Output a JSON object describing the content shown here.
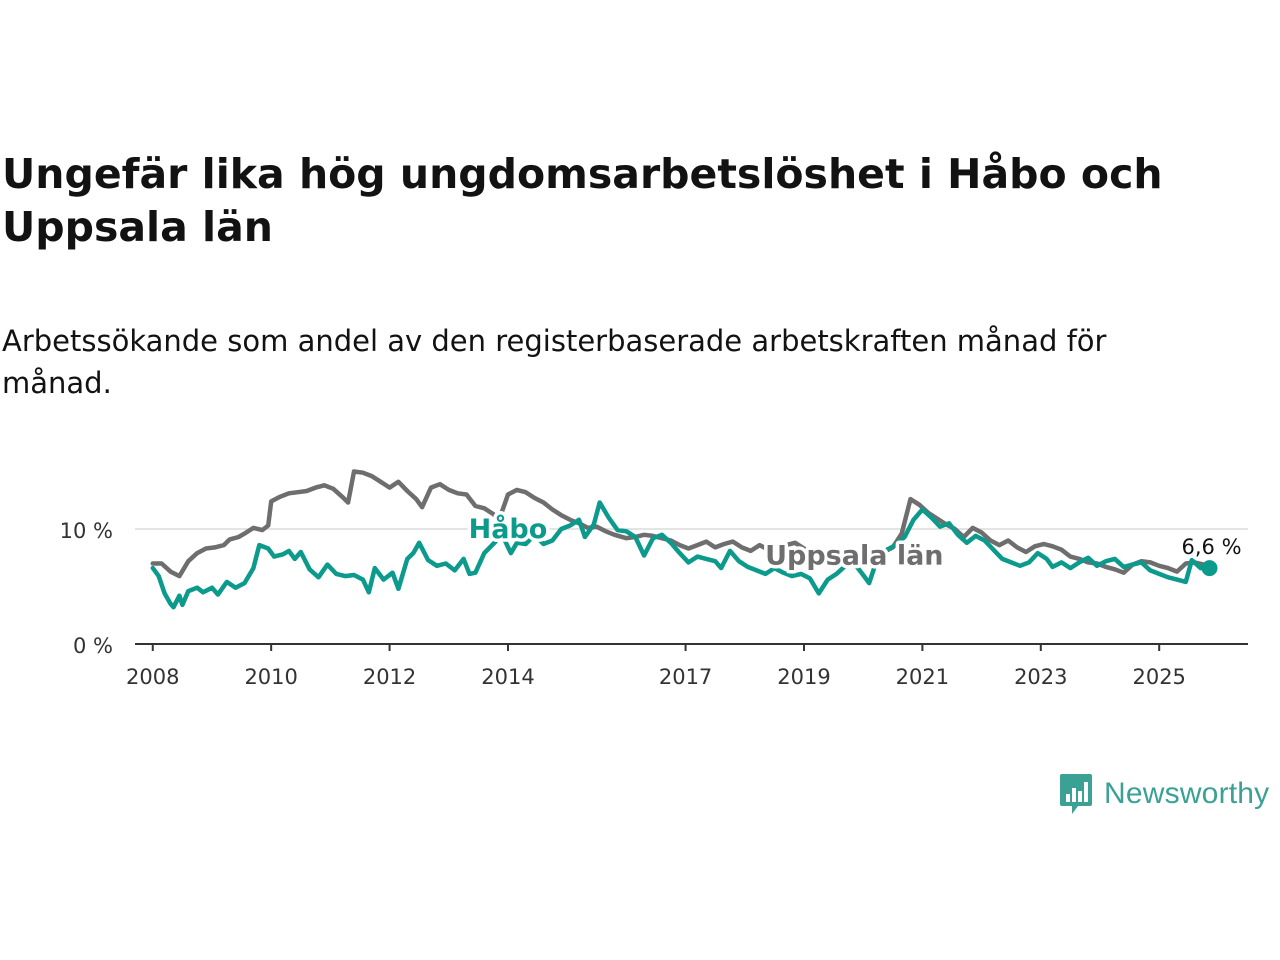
{
  "title": "Ungefär lika hög ungdomsarbetslöshet i Håbo och Uppsala län",
  "subtitle": "Arbetssökande som andel av den registerbaserade arbetskraften månad för månad.",
  "brand": {
    "name": "Newsworthy",
    "color": "#3aa194",
    "icon": "bar-chart-speech-bubble-icon"
  },
  "chart_data": {
    "type": "line",
    "title": "Ungefär lika hög ungdomsarbetslöshet i Håbo och Uppsala län",
    "xlabel": "",
    "ylabel": "",
    "x_range": [
      2007.7,
      2026.5
    ],
    "ylim": [
      0,
      16
    ],
    "x_ticks": [
      2008,
      2010,
      2012,
      2014,
      2017,
      2019,
      2021,
      2023,
      2025
    ],
    "x_tick_labels": [
      "2008",
      "2010",
      "2012",
      "2014",
      "2017",
      "2019",
      "2021",
      "2023",
      "2025"
    ],
    "y_ticks": [
      0,
      10
    ],
    "y_tick_labels": [
      "0 %",
      "10 %"
    ],
    "grid": "horizontal",
    "last_value_label": "6,6 %",
    "series": [
      {
        "name": "Uppsala län",
        "label": "Uppsala län",
        "color": "#6f6e6f",
        "points": [
          [
            2008.0,
            7.0
          ],
          [
            2008.15,
            7.0
          ],
          [
            2008.3,
            6.3
          ],
          [
            2008.45,
            5.9
          ],
          [
            2008.6,
            7.2
          ],
          [
            2008.75,
            7.9
          ],
          [
            2008.9,
            8.3
          ],
          [
            2009.05,
            8.4
          ],
          [
            2009.2,
            8.6
          ],
          [
            2009.3,
            9.1
          ],
          [
            2009.45,
            9.3
          ],
          [
            2009.55,
            9.6
          ],
          [
            2009.7,
            10.1
          ],
          [
            2009.85,
            9.9
          ],
          [
            2009.95,
            10.3
          ],
          [
            2010.0,
            12.4
          ],
          [
            2010.15,
            12.8
          ],
          [
            2010.3,
            13.1
          ],
          [
            2010.45,
            13.2
          ],
          [
            2010.6,
            13.3
          ],
          [
            2010.75,
            13.6
          ],
          [
            2010.9,
            13.8
          ],
          [
            2011.05,
            13.5
          ],
          [
            2011.2,
            12.8
          ],
          [
            2011.3,
            12.3
          ],
          [
            2011.4,
            15.0
          ],
          [
            2011.55,
            14.9
          ],
          [
            2011.7,
            14.6
          ],
          [
            2011.85,
            14.1
          ],
          [
            2012.0,
            13.6
          ],
          [
            2012.15,
            14.1
          ],
          [
            2012.3,
            13.3
          ],
          [
            2012.45,
            12.6
          ],
          [
            2012.55,
            11.9
          ],
          [
            2012.7,
            13.6
          ],
          [
            2012.85,
            13.9
          ],
          [
            2013.0,
            13.4
          ],
          [
            2013.15,
            13.1
          ],
          [
            2013.3,
            13.0
          ],
          [
            2013.45,
            12.0
          ],
          [
            2013.6,
            11.8
          ],
          [
            2013.75,
            11.3
          ],
          [
            2013.85,
            10.8
          ],
          [
            2014.0,
            13.0
          ],
          [
            2014.15,
            13.4
          ],
          [
            2014.3,
            13.2
          ],
          [
            2014.45,
            12.7
          ],
          [
            2014.6,
            12.3
          ],
          [
            2014.75,
            11.7
          ],
          [
            2014.9,
            11.2
          ],
          [
            2015.05,
            10.8
          ],
          [
            2015.2,
            10.5
          ],
          [
            2015.35,
            10.1
          ],
          [
            2015.5,
            10.2
          ],
          [
            2015.65,
            9.8
          ],
          [
            2015.8,
            9.5
          ],
          [
            2016.0,
            9.2
          ],
          [
            2016.15,
            9.3
          ],
          [
            2016.3,
            9.5
          ],
          [
            2016.45,
            9.4
          ],
          [
            2016.6,
            9.2
          ],
          [
            2016.75,
            9.0
          ],
          [
            2016.9,
            8.6
          ],
          [
            2017.05,
            8.3
          ],
          [
            2017.2,
            8.6
          ],
          [
            2017.35,
            8.9
          ],
          [
            2017.5,
            8.4
          ],
          [
            2017.65,
            8.7
          ],
          [
            2017.8,
            8.9
          ],
          [
            2017.95,
            8.4
          ],
          [
            2018.1,
            8.1
          ],
          [
            2018.25,
            8.6
          ],
          [
            2018.4,
            8.2
          ],
          [
            2018.55,
            8.0
          ],
          [
            2018.7,
            8.6
          ],
          [
            2018.85,
            8.8
          ],
          [
            2019.0,
            8.3
          ],
          [
            2019.15,
            7.8
          ],
          [
            2019.3,
            7.5
          ],
          [
            2019.45,
            7.4
          ],
          [
            2019.6,
            7.3
          ],
          [
            2019.75,
            7.6
          ],
          [
            2019.9,
            7.8
          ],
          [
            2020.05,
            7.9
          ],
          [
            2020.2,
            7.7
          ],
          [
            2020.35,
            8.0
          ],
          [
            2020.5,
            8.4
          ],
          [
            2020.65,
            9.6
          ],
          [
            2020.8,
            12.6
          ],
          [
            2020.95,
            12.1
          ],
          [
            2021.1,
            11.4
          ],
          [
            2021.25,
            10.9
          ],
          [
            2021.4,
            10.4
          ],
          [
            2021.55,
            10.0
          ],
          [
            2021.7,
            9.3
          ],
          [
            2021.85,
            10.1
          ],
          [
            2022.0,
            9.7
          ],
          [
            2022.15,
            9.0
          ],
          [
            2022.3,
            8.6
          ],
          [
            2022.45,
            9.0
          ],
          [
            2022.6,
            8.4
          ],
          [
            2022.75,
            8.0
          ],
          [
            2022.9,
            8.5
          ],
          [
            2023.05,
            8.7
          ],
          [
            2023.2,
            8.5
          ],
          [
            2023.35,
            8.2
          ],
          [
            2023.5,
            7.6
          ],
          [
            2023.65,
            7.4
          ],
          [
            2023.8,
            7.1
          ],
          [
            2023.95,
            7.0
          ],
          [
            2024.1,
            6.7
          ],
          [
            2024.25,
            6.5
          ],
          [
            2024.4,
            6.2
          ],
          [
            2024.55,
            6.9
          ],
          [
            2024.7,
            7.2
          ],
          [
            2024.85,
            7.1
          ],
          [
            2025.0,
            6.8
          ],
          [
            2025.15,
            6.6
          ],
          [
            2025.3,
            6.3
          ],
          [
            2025.45,
            7.0
          ],
          [
            2025.6,
            7.1
          ],
          [
            2025.75,
            6.9
          ],
          [
            2025.85,
            6.8
          ]
        ]
      },
      {
        "name": "Håbo",
        "label": "Håbo",
        "color": "#0b9a8c",
        "points": [
          [
            2008.0,
            6.6
          ],
          [
            2008.1,
            5.9
          ],
          [
            2008.2,
            4.4
          ],
          [
            2008.3,
            3.5
          ],
          [
            2008.35,
            3.2
          ],
          [
            2008.45,
            4.2
          ],
          [
            2008.5,
            3.4
          ],
          [
            2008.6,
            4.6
          ],
          [
            2008.75,
            4.9
          ],
          [
            2008.85,
            4.5
          ],
          [
            2009.0,
            4.9
          ],
          [
            2009.1,
            4.3
          ],
          [
            2009.25,
            5.4
          ],
          [
            2009.4,
            4.9
          ],
          [
            2009.55,
            5.3
          ],
          [
            2009.7,
            6.6
          ],
          [
            2009.8,
            8.6
          ],
          [
            2009.95,
            8.3
          ],
          [
            2010.05,
            7.6
          ],
          [
            2010.2,
            7.8
          ],
          [
            2010.3,
            8.1
          ],
          [
            2010.4,
            7.4
          ],
          [
            2010.5,
            8.0
          ],
          [
            2010.65,
            6.5
          ],
          [
            2010.8,
            5.8
          ],
          [
            2010.95,
            6.9
          ],
          [
            2011.1,
            6.1
          ],
          [
            2011.25,
            5.9
          ],
          [
            2011.4,
            6.0
          ],
          [
            2011.55,
            5.6
          ],
          [
            2011.65,
            4.5
          ],
          [
            2011.75,
            6.6
          ],
          [
            2011.9,
            5.6
          ],
          [
            2012.05,
            6.2
          ],
          [
            2012.15,
            4.8
          ],
          [
            2012.3,
            7.4
          ],
          [
            2012.4,
            7.9
          ],
          [
            2012.5,
            8.8
          ],
          [
            2012.65,
            7.3
          ],
          [
            2012.8,
            6.8
          ],
          [
            2012.95,
            7.0
          ],
          [
            2013.1,
            6.4
          ],
          [
            2013.25,
            7.4
          ],
          [
            2013.35,
            6.1
          ],
          [
            2013.45,
            6.2
          ],
          [
            2013.6,
            7.9
          ],
          [
            2013.75,
            8.7
          ],
          [
            2013.9,
            9.5
          ],
          [
            2014.05,
            7.9
          ],
          [
            2014.15,
            8.8
          ],
          [
            2014.3,
            8.7
          ],
          [
            2014.45,
            9.5
          ],
          [
            2014.6,
            8.7
          ],
          [
            2014.75,
            9.0
          ],
          [
            2014.9,
            10.0
          ],
          [
            2015.05,
            10.3
          ],
          [
            2015.2,
            10.8
          ],
          [
            2015.3,
            9.3
          ],
          [
            2015.45,
            10.4
          ],
          [
            2015.55,
            12.3
          ],
          [
            2015.7,
            11.0
          ],
          [
            2015.85,
            9.9
          ],
          [
            2016.0,
            9.8
          ],
          [
            2016.15,
            9.3
          ],
          [
            2016.3,
            7.7
          ],
          [
            2016.45,
            9.2
          ],
          [
            2016.6,
            9.5
          ],
          [
            2016.75,
            8.8
          ],
          [
            2016.9,
            7.9
          ],
          [
            2017.05,
            7.1
          ],
          [
            2017.2,
            7.6
          ],
          [
            2017.35,
            7.4
          ],
          [
            2017.5,
            7.2
          ],
          [
            2017.6,
            6.6
          ],
          [
            2017.75,
            8.1
          ],
          [
            2017.9,
            7.2
          ],
          [
            2018.05,
            6.7
          ],
          [
            2018.2,
            6.4
          ],
          [
            2018.35,
            6.1
          ],
          [
            2018.5,
            6.6
          ],
          [
            2018.65,
            6.2
          ],
          [
            2018.8,
            5.9
          ],
          [
            2018.95,
            6.1
          ],
          [
            2019.1,
            5.7
          ],
          [
            2019.25,
            4.4
          ],
          [
            2019.4,
            5.6
          ],
          [
            2019.55,
            6.1
          ],
          [
            2019.7,
            6.8
          ],
          [
            2019.85,
            7.0
          ],
          [
            2020.0,
            6.0
          ],
          [
            2020.1,
            5.3
          ],
          [
            2020.25,
            7.6
          ],
          [
            2020.4,
            8.2
          ],
          [
            2020.55,
            8.6
          ],
          [
            2020.7,
            9.3
          ],
          [
            2020.85,
            10.8
          ],
          [
            2021.0,
            11.7
          ],
          [
            2021.15,
            11.0
          ],
          [
            2021.3,
            10.2
          ],
          [
            2021.45,
            10.5
          ],
          [
            2021.6,
            9.5
          ],
          [
            2021.75,
            8.8
          ],
          [
            2021.9,
            9.4
          ],
          [
            2022.05,
            9.0
          ],
          [
            2022.2,
            8.2
          ],
          [
            2022.35,
            7.4
          ],
          [
            2022.5,
            7.1
          ],
          [
            2022.65,
            6.8
          ],
          [
            2022.8,
            7.1
          ],
          [
            2022.95,
            7.9
          ],
          [
            2023.1,
            7.4
          ],
          [
            2023.2,
            6.7
          ],
          [
            2023.35,
            7.1
          ],
          [
            2023.5,
            6.6
          ],
          [
            2023.65,
            7.1
          ],
          [
            2023.8,
            7.5
          ],
          [
            2023.95,
            6.8
          ],
          [
            2024.1,
            7.2
          ],
          [
            2024.25,
            7.4
          ],
          [
            2024.4,
            6.7
          ],
          [
            2024.55,
            6.9
          ],
          [
            2024.7,
            7.1
          ],
          [
            2024.85,
            6.4
          ],
          [
            2025.0,
            6.1
          ],
          [
            2025.15,
            5.8
          ],
          [
            2025.3,
            5.6
          ],
          [
            2025.45,
            5.4
          ],
          [
            2025.55,
            7.3
          ],
          [
            2025.7,
            6.6
          ],
          [
            2025.85,
            6.6
          ]
        ]
      }
    ]
  }
}
